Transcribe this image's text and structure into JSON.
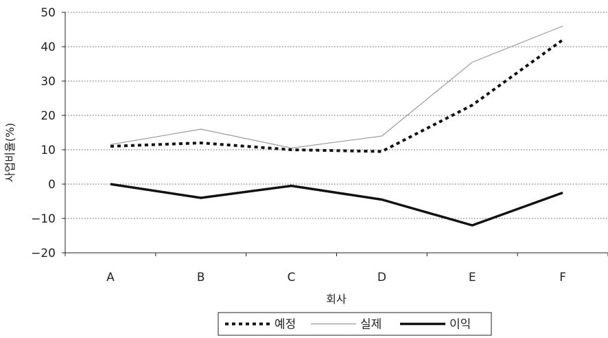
{
  "chart_data": {
    "type": "line",
    "xlabel": "회사",
    "ylabel": "사업비율(%)",
    "categories": [
      "A",
      "B",
      "C",
      "D",
      "E",
      "F"
    ],
    "ylim": [
      -20,
      50
    ],
    "yticks": [
      -20,
      -10,
      0,
      10,
      20,
      30,
      40,
      50
    ],
    "ytick_labels": [
      "−20",
      "−10",
      "0",
      "10",
      "20",
      "30",
      "40",
      "50"
    ],
    "grid": true,
    "legend_position": "bottom",
    "series": [
      {
        "name": "예정",
        "values": [
          11,
          12,
          10,
          9.5,
          23,
          42
        ],
        "color": "#111111",
        "style": "dotted-thick"
      },
      {
        "name": "실제",
        "values": [
          11.5,
          16,
          10.5,
          14,
          35.5,
          46
        ],
        "color": "#9a9a9a",
        "style": "solid-thin"
      },
      {
        "name": "이익",
        "values": [
          0,
          -4,
          -0.5,
          -4.5,
          -12,
          -2.5
        ],
        "color": "#111111",
        "style": "solid-thick"
      }
    ]
  }
}
